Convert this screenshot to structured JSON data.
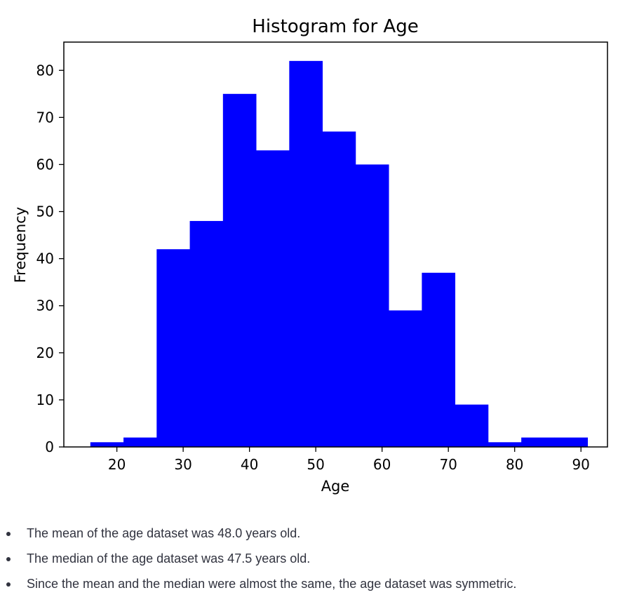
{
  "chart_data": {
    "type": "bar",
    "subtype": "histogram",
    "title": "Histogram for Age",
    "xlabel": "Age",
    "ylabel": "Frequency",
    "bin_edges": [
      16,
      21,
      26,
      31,
      36,
      41,
      46,
      51,
      56,
      61,
      66,
      71,
      76,
      81,
      86,
      91
    ],
    "values": [
      1,
      2,
      42,
      48,
      75,
      63,
      82,
      67,
      60,
      29,
      37,
      9,
      1,
      2,
      2
    ],
    "xlim": [
      12,
      94
    ],
    "ylim": [
      0,
      86
    ],
    "xticks": [
      20,
      30,
      40,
      50,
      60,
      70,
      80,
      90
    ],
    "yticks": [
      0,
      10,
      20,
      30,
      40,
      50,
      60,
      70,
      80
    ],
    "bar_color": "#0000ff",
    "grid": false
  },
  "notes": [
    "The mean of the age dataset was 48.0 years old.",
    "The median of the age dataset was 47.5 years old.",
    "Since the mean and the median were almost the same, the age dataset was symmetric."
  ]
}
